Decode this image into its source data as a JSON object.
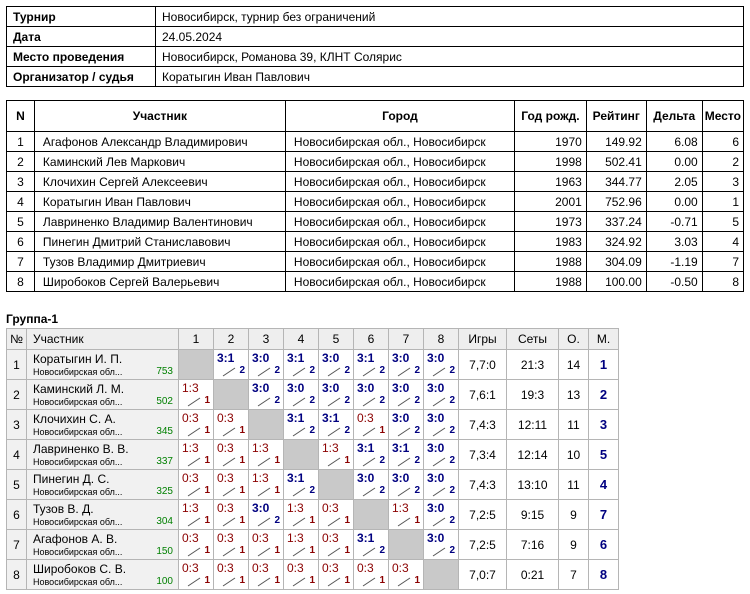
{
  "info": [
    {
      "label": "Турнир",
      "value": "Новосибирск, турнир без ограничений"
    },
    {
      "label": "Дата",
      "value": "24.05.2024"
    },
    {
      "label": "Место проведения",
      "value": "Новосибирск, Романова 39, КЛНТ Солярис"
    },
    {
      "label": "Организатор / судья",
      "value": "Коратыгин Иван Павлович"
    }
  ],
  "participants_table": {
    "headers": [
      "N",
      "Участник",
      "Город",
      "Год рожд.",
      "Рейтинг",
      "Дельта",
      "Место"
    ],
    "rows": [
      {
        "n": "1",
        "name": "Агафонов Александр Владимирович",
        "city": "Новосибирская обл., Новосибирск",
        "year": "1970",
        "rating": "149.92",
        "delta": "6.08",
        "place": "6"
      },
      {
        "n": "2",
        "name": "Каминский Лев Маркович",
        "city": "Новосибирская обл., Новосибирск",
        "year": "1998",
        "rating": "502.41",
        "delta": "0.00",
        "place": "2"
      },
      {
        "n": "3",
        "name": "Клочихин Сергей Алексеевич",
        "city": "Новосибирская обл., Новосибирск",
        "year": "1963",
        "rating": "344.77",
        "delta": "2.05",
        "place": "3"
      },
      {
        "n": "4",
        "name": "Коратыгин Иван Павлович",
        "city": "Новосибирская обл., Новосибирск",
        "year": "2001",
        "rating": "752.96",
        "delta": "0.00",
        "place": "1"
      },
      {
        "n": "5",
        "name": "Лавриненко Владимир Валентинович",
        "city": "Новосибирская обл., Новосибирск",
        "year": "1973",
        "rating": "337.24",
        "delta": "-0.71",
        "place": "5"
      },
      {
        "n": "6",
        "name": "Пинегин Дмитрий Станиславович",
        "city": "Новосибирская обл., Новосибирск",
        "year": "1983",
        "rating": "324.92",
        "delta": "3.03",
        "place": "4"
      },
      {
        "n": "7",
        "name": "Тузов Владимир Дмитриевич",
        "city": "Новосибирская обл., Новосибирск",
        "year": "1988",
        "rating": "304.09",
        "delta": "-1.19",
        "place": "7"
      },
      {
        "n": "8",
        "name": "Широбоков Сергей Валерьевич",
        "city": "Новосибирская обл., Новосибирск",
        "year": "1988",
        "rating": "100.00",
        "delta": "-0.50",
        "place": "8"
      }
    ]
  },
  "group": {
    "title": "Группа-1",
    "headers": {
      "n": "№",
      "participant": "Участник",
      "games": "Игры",
      "sets": "Сеты",
      "points": "О.",
      "place": "М."
    },
    "columns": [
      "1",
      "2",
      "3",
      "4",
      "5",
      "6",
      "7",
      "8"
    ],
    "rows": [
      {
        "n": "1",
        "name": "Коратыгин И. П.",
        "city": "Новосибирская обл...",
        "rating": "753",
        "results": [
          null,
          [
            "3:1",
            "2"
          ],
          [
            "3:0",
            "2"
          ],
          [
            "3:1",
            "2"
          ],
          [
            "3:0",
            "2"
          ],
          [
            "3:1",
            "2"
          ],
          [
            "3:0",
            "2"
          ],
          [
            "3:0",
            "2"
          ]
        ],
        "games": "7,7:0",
        "sets": "21:3",
        "points": "14",
        "place": "1"
      },
      {
        "n": "2",
        "name": "Каминский Л. М.",
        "city": "Новосибирская обл...",
        "rating": "502",
        "results": [
          [
            "1:3",
            "1"
          ],
          null,
          [
            "3:0",
            "2"
          ],
          [
            "3:0",
            "2"
          ],
          [
            "3:0",
            "2"
          ],
          [
            "3:0",
            "2"
          ],
          [
            "3:0",
            "2"
          ],
          [
            "3:0",
            "2"
          ]
        ],
        "games": "7,6:1",
        "sets": "19:3",
        "points": "13",
        "place": "2"
      },
      {
        "n": "3",
        "name": "Клочихин С. А.",
        "city": "Новосибирская обл...",
        "rating": "345",
        "results": [
          [
            "0:3",
            "1"
          ],
          [
            "0:3",
            "1"
          ],
          null,
          [
            "3:1",
            "2"
          ],
          [
            "3:1",
            "2"
          ],
          [
            "0:3",
            "1"
          ],
          [
            "3:0",
            "2"
          ],
          [
            "3:0",
            "2"
          ]
        ],
        "games": "7,4:3",
        "sets": "12:11",
        "points": "11",
        "place": "3"
      },
      {
        "n": "4",
        "name": "Лавриненко В. В.",
        "city": "Новосибирская обл...",
        "rating": "337",
        "results": [
          [
            "1:3",
            "1"
          ],
          [
            "0:3",
            "1"
          ],
          [
            "1:3",
            "1"
          ],
          null,
          [
            "1:3",
            "1"
          ],
          [
            "3:1",
            "2"
          ],
          [
            "3:1",
            "2"
          ],
          [
            "3:0",
            "2"
          ]
        ],
        "games": "7,3:4",
        "sets": "12:14",
        "points": "10",
        "place": "5"
      },
      {
        "n": "5",
        "name": "Пинегин Д. С.",
        "city": "Новосибирская обл...",
        "rating": "325",
        "results": [
          [
            "0:3",
            "1"
          ],
          [
            "0:3",
            "1"
          ],
          [
            "1:3",
            "1"
          ],
          [
            "3:1",
            "2"
          ],
          null,
          [
            "3:0",
            "2"
          ],
          [
            "3:0",
            "2"
          ],
          [
            "3:0",
            "2"
          ]
        ],
        "games": "7,4:3",
        "sets": "13:10",
        "points": "11",
        "place": "4"
      },
      {
        "n": "6",
        "name": "Тузов В. Д.",
        "city": "Новосибирская обл...",
        "rating": "304",
        "results": [
          [
            "1:3",
            "1"
          ],
          [
            "0:3",
            "1"
          ],
          [
            "3:0",
            "2"
          ],
          [
            "1:3",
            "1"
          ],
          [
            "0:3",
            "1"
          ],
          null,
          [
            "1:3",
            "1"
          ],
          [
            "3:0",
            "2"
          ]
        ],
        "games": "7,2:5",
        "sets": "9:15",
        "points": "9",
        "place": "7"
      },
      {
        "n": "7",
        "name": "Агафонов А. В.",
        "city": "Новосибирская обл...",
        "rating": "150",
        "results": [
          [
            "0:3",
            "1"
          ],
          [
            "0:3",
            "1"
          ],
          [
            "0:3",
            "1"
          ],
          [
            "1:3",
            "1"
          ],
          [
            "0:3",
            "1"
          ],
          [
            "3:1",
            "2"
          ],
          null,
          [
            "3:0",
            "2"
          ]
        ],
        "games": "7,2:5",
        "sets": "7:16",
        "points": "9",
        "place": "6"
      },
      {
        "n": "8",
        "name": "Широбоков С. В.",
        "city": "Новосибирская обл...",
        "rating": "100",
        "results": [
          [
            "0:3",
            "1"
          ],
          [
            "0:3",
            "1"
          ],
          [
            "0:3",
            "1"
          ],
          [
            "0:3",
            "1"
          ],
          [
            "0:3",
            "1"
          ],
          [
            "0:3",
            "1"
          ],
          [
            "0:3",
            "1"
          ],
          null
        ],
        "games": "7,0:7",
        "sets": "0:21",
        "points": "7",
        "place": "8"
      }
    ]
  }
}
